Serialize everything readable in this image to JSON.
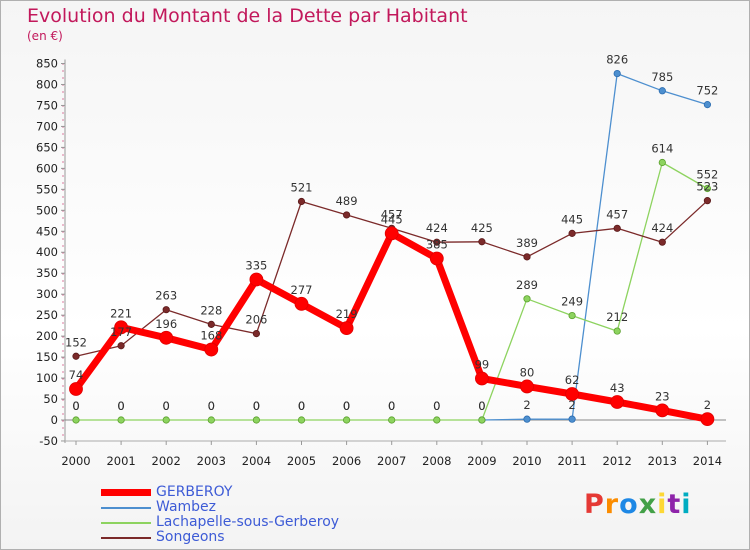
{
  "title": "Evolution du Montant de la Dette par Habitant",
  "unit_label": "(en €)",
  "logo_text": "Proxiti",
  "logo_colors": [
    "#e53935",
    "#fb8c00",
    "#1e88e5",
    "#43a047",
    "#fdd835",
    "#8e24aa",
    "#00acc1"
  ],
  "chart_data": {
    "type": "line",
    "title": "Evolution du Montant de la Dette par Habitant",
    "ylabel": "(en €)",
    "x": [
      "2000",
      "2001",
      "2002",
      "2003",
      "2004",
      "2005",
      "2006",
      "2007",
      "2008",
      "2009",
      "2010",
      "2011",
      "2012",
      "2013",
      "2014"
    ],
    "ylim": [
      -50,
      850
    ],
    "yticks": [
      -50,
      0,
      50,
      100,
      150,
      200,
      250,
      300,
      350,
      400,
      450,
      500,
      550,
      600,
      650,
      700,
      750,
      800,
      850
    ],
    "grid": false,
    "legend_position": "bottom-left",
    "series": [
      {
        "name": "GERBEROY",
        "color": "#ff0000",
        "values": [
          74,
          221,
          196,
          168,
          335,
          277,
          219,
          445,
          385,
          99,
          80,
          62,
          43,
          23,
          2
        ]
      },
      {
        "name": "Wambez",
        "color": "#4d8fcf",
        "values": [
          0,
          0,
          0,
          0,
          0,
          0,
          0,
          0,
          0,
          0,
          2,
          2,
          826,
          785,
          752
        ]
      },
      {
        "name": "Lachapelle-sous-Gerberoy",
        "color": "#8dd35f",
        "values": [
          0,
          0,
          0,
          0,
          0,
          0,
          0,
          0,
          0,
          0,
          289,
          249,
          212,
          614,
          552
        ]
      },
      {
        "name": "Songeons",
        "color": "#7b2a2a",
        "values": [
          152,
          177,
          263,
          228,
          206,
          521,
          489,
          457,
          424,
          425,
          389,
          445,
          457,
          424,
          523
        ]
      }
    ]
  }
}
